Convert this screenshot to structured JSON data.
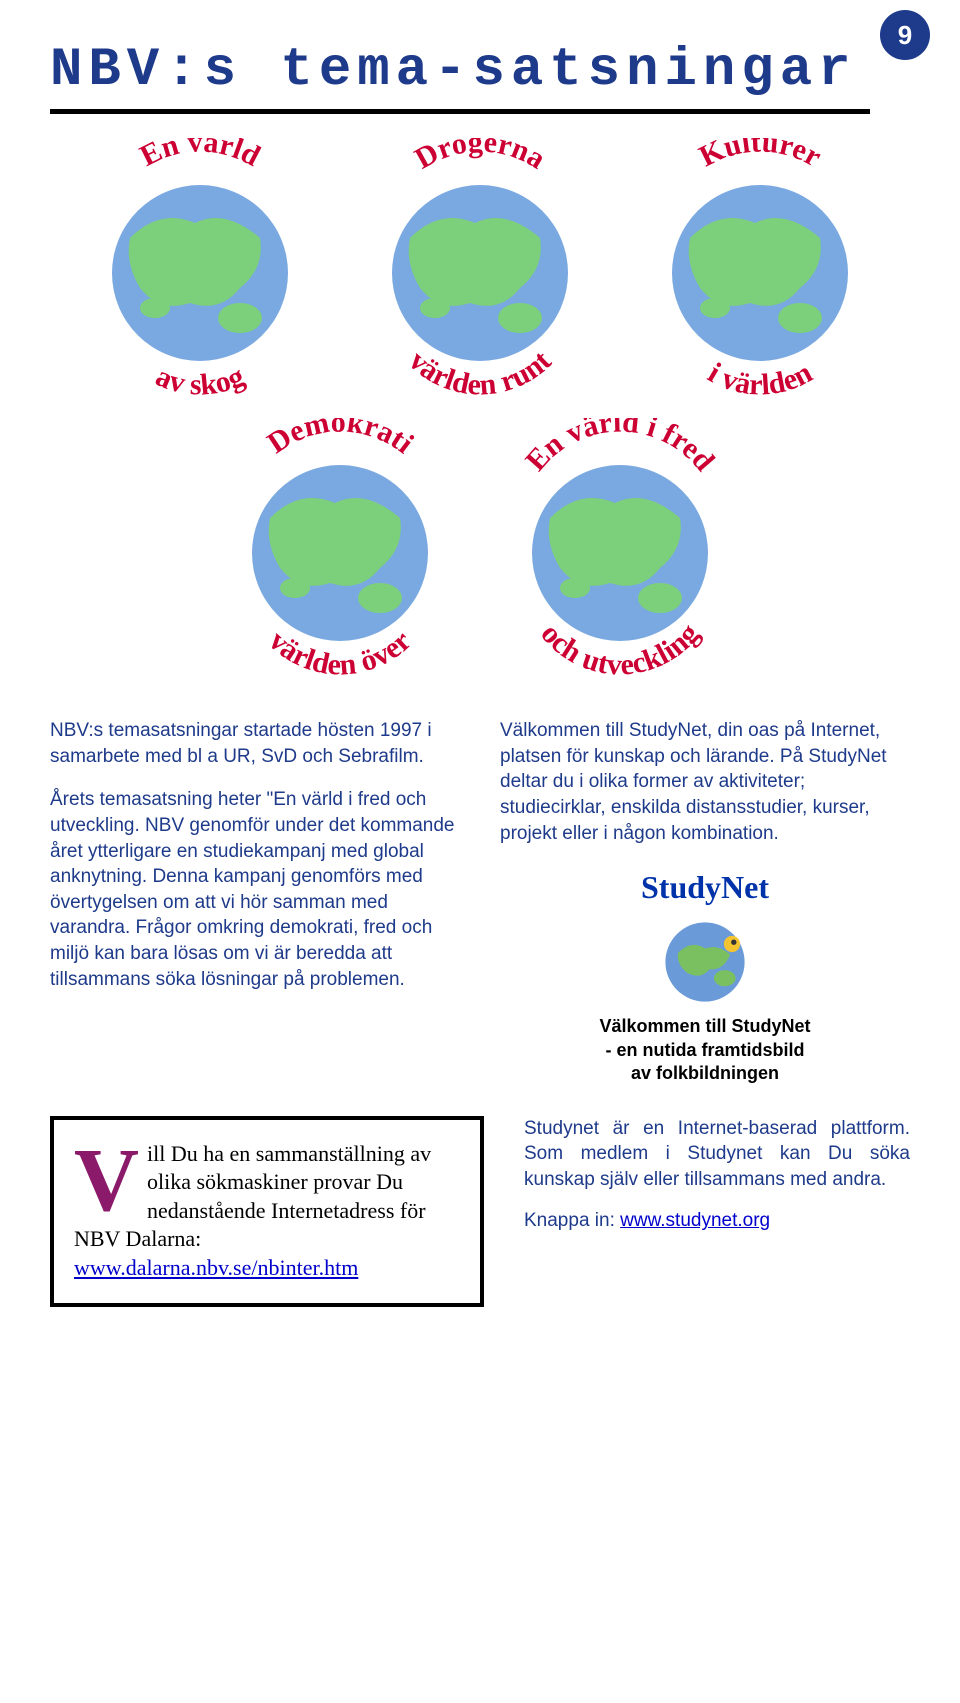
{
  "page_number": "9",
  "title": "NBV:s tema-satsningar",
  "colors": {
    "heading": "#1e3a8a",
    "body": "#1e3a8a",
    "globe_label": "#cc0033",
    "dropcap": "#8b1a6b",
    "link": "#0000cc",
    "rule": "#000000",
    "page_bg": "#ffffff",
    "badge_bg": "#1e3a8a"
  },
  "globes": [
    {
      "top": "En värld",
      "bottom": "av skog"
    },
    {
      "top": "Drogerna",
      "bottom": "världen runt"
    },
    {
      "top": "Kulturer",
      "bottom": "i världen"
    },
    {
      "top": "Demokrati",
      "bottom": "världen över"
    },
    {
      "top": "En värld i fred",
      "bottom": "och utveckling"
    }
  ],
  "left_col": {
    "p1": "NBV:s temasatsningar startade hösten 1997 i samarbete med bl a UR, SvD och Sebrafilm.",
    "p2": "Årets temasatsning heter \"En värld i fred och utveckling. NBV genomför under det kommande året ytterligare en studiekampanj med global anknytning. Denna kampanj genomförs med övertygelsen om att vi hör samman med varandra. Frågor omkring demokrati, fred och miljö kan bara lösas om vi är beredda att tillsammans söka lösningar på problemen."
  },
  "right_col": {
    "p1": "Välkommen till StudyNet, din oas på Internet, platsen för kunskap och lärande. På StudyNet deltar du i olika former av aktiviteter; studiecirklar, enskilda distansstudier, kurser, projekt eller i någon kombination."
  },
  "studynet": {
    "title": "StudyNet",
    "sub1": "Välkommen till StudyNet",
    "sub2": "- en nutida framtidsbild",
    "sub3": "av folkbildningen"
  },
  "box": {
    "dropcap": "V",
    "text": "ill Du ha en sammanställning av olika sökmaskiner provar Du nedanstående Internetadress för NBV Dalarna:",
    "link": "www.dalarna.nbv.se/nbinter.htm"
  },
  "lower_right": {
    "p1": "Studynet är en Internet-baserad plattform. Som medlem i Studynet kan Du söka kunskap själv eller tillsammans med andra.",
    "p2_prefix": "Knappa in: ",
    "p2_link": "www.studynet.org"
  }
}
